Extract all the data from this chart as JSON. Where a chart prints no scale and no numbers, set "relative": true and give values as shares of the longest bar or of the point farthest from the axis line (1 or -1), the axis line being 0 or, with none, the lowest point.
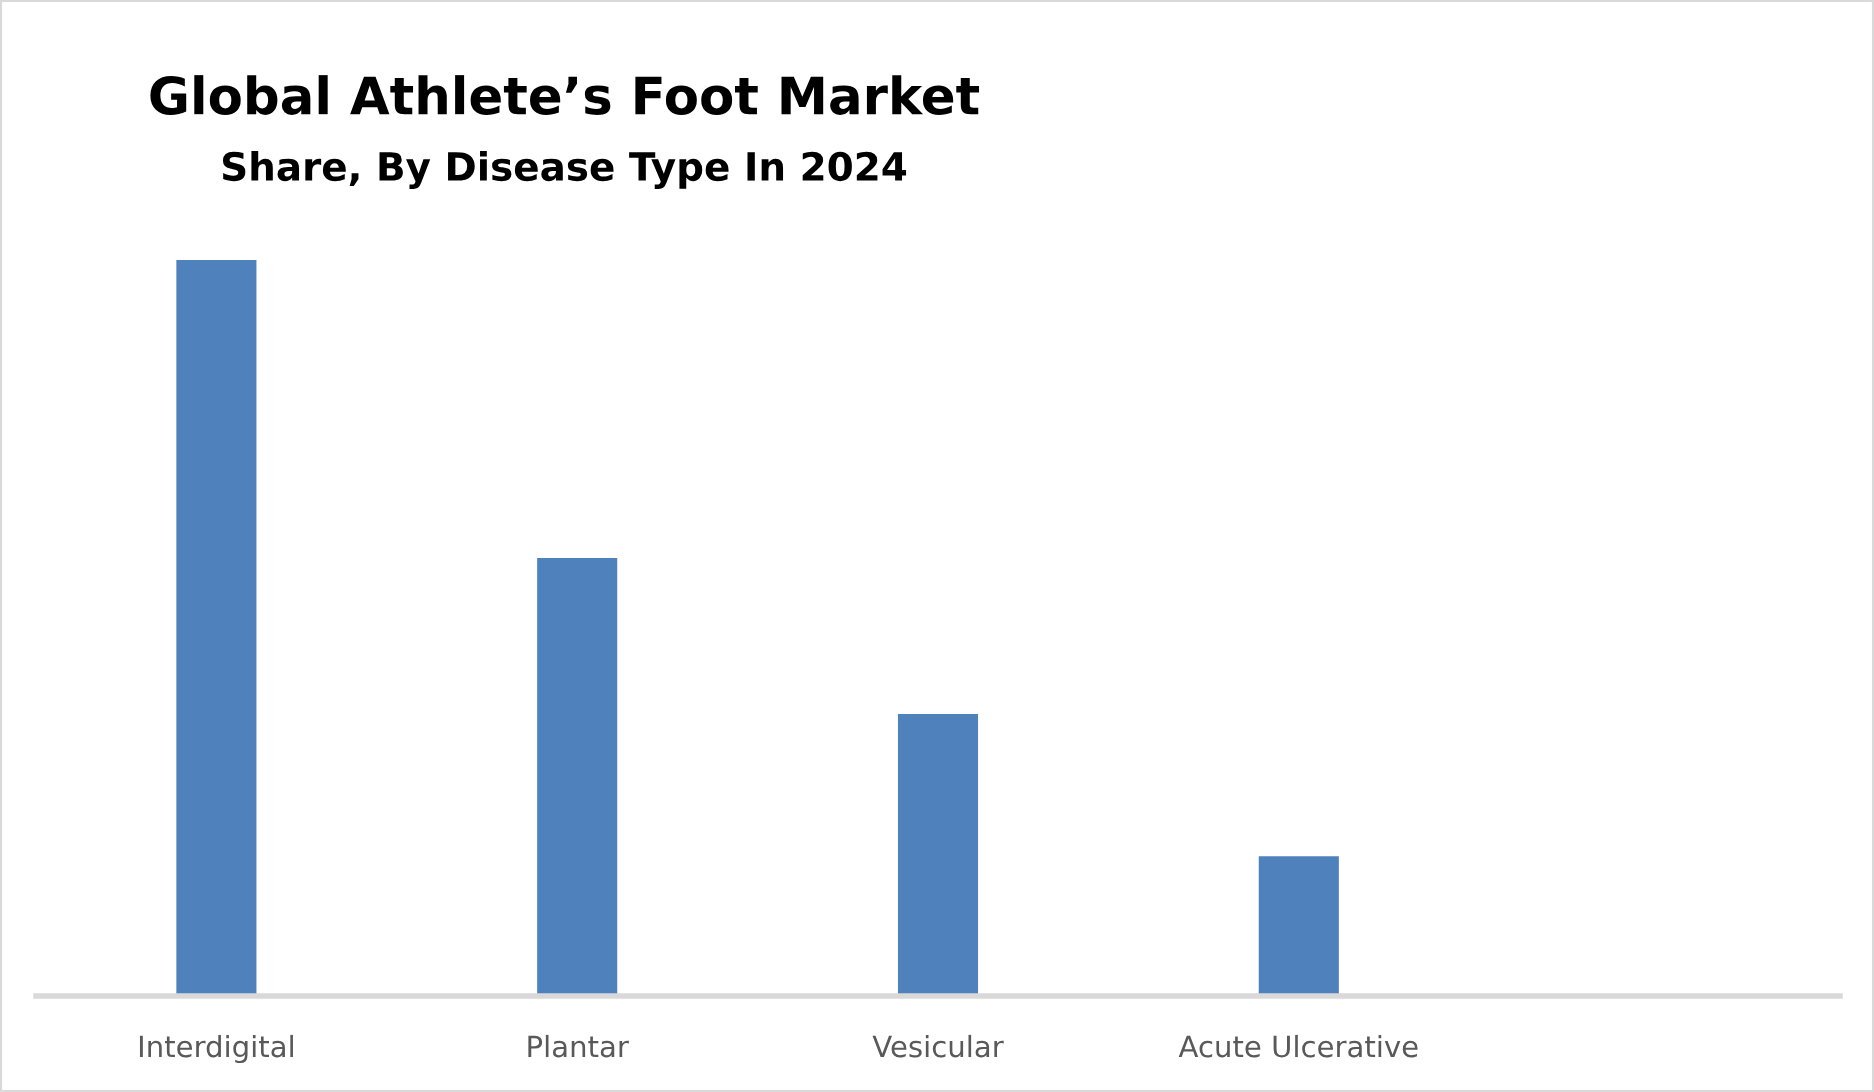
{
  "chart_data": {
    "type": "bar",
    "title": "Global Athlete’s Foot Market",
    "subtitle": "Share, By Disease Type In 2024",
    "categories": [
      "Interdigital",
      "Plantar",
      "Vesicular",
      "Acute Ulcerative",
      null
    ],
    "values": [
      1,
      0.595,
      0.383,
      0.19,
      null
    ],
    "color": "#4f81bd",
    "relative": true
  }
}
